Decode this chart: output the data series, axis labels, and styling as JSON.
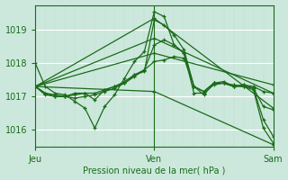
{
  "background_color": "#cce8dc",
  "plot_bg_color": "#cce8dc",
  "line_color": "#1a6b1a",
  "xlabel": "Pression niveau de la mer( hPa )",
  "yticks": [
    1016,
    1017,
    1018,
    1019
  ],
  "xtick_labels": [
    "Jeu",
    "Ven",
    "Sam"
  ],
  "ylim": [
    1015.5,
    1019.75
  ],
  "xlim": [
    0,
    48
  ],
  "xtick_positions": [
    0,
    24,
    48
  ],
  "vline_x": 24,
  "series": [
    {
      "x": [
        0,
        2,
        4,
        6,
        8,
        10,
        12,
        14,
        16,
        18,
        20,
        22,
        24,
        26,
        28,
        30,
        32,
        34,
        36,
        38,
        40,
        42,
        44,
        46,
        48
      ],
      "y": [
        1018.0,
        1017.3,
        1017.1,
        1017.05,
        1016.85,
        1016.65,
        1016.05,
        1016.7,
        1017.05,
        1017.55,
        1018.05,
        1018.35,
        1019.55,
        1019.4,
        1018.55,
        1018.3,
        1017.1,
        1017.1,
        1017.35,
        1017.4,
        1017.35,
        1017.3,
        1017.2,
        1016.05,
        1015.6
      ]
    },
    {
      "x": [
        0,
        24,
        48
      ],
      "y": [
        1017.3,
        1018.3,
        1017.35
      ]
    },
    {
      "x": [
        0,
        24,
        48
      ],
      "y": [
        1017.3,
        1018.75,
        1017.1
      ]
    },
    {
      "x": [
        0,
        24,
        48
      ],
      "y": [
        1017.3,
        1019.35,
        1016.65
      ]
    },
    {
      "x": [
        0,
        24,
        48
      ],
      "y": [
        1017.3,
        1017.15,
        1015.55
      ]
    },
    {
      "x": [
        0,
        2,
        4,
        6,
        8,
        10,
        12,
        14,
        16,
        18,
        20,
        22,
        24,
        26,
        28,
        30,
        32,
        34,
        36,
        38,
        40,
        42,
        44,
        46,
        48
      ],
      "y": [
        1017.3,
        1017.1,
        1017.0,
        1017.0,
        1017.1,
        1017.1,
        1016.9,
        1017.2,
        1017.3,
        1017.4,
        1017.6,
        1017.8,
        1018.05,
        1018.1,
        1018.2,
        1018.15,
        1017.3,
        1017.15,
        1017.4,
        1017.4,
        1017.3,
        1017.35,
        1017.3,
        1017.15,
        1017.1
      ]
    },
    {
      "x": [
        0,
        2,
        4,
        6,
        8,
        10,
        12,
        14,
        16,
        18,
        20,
        22,
        24,
        26,
        28,
        30,
        32,
        34,
        36,
        38,
        40,
        42,
        44,
        46,
        48
      ],
      "y": [
        1017.3,
        1017.05,
        1017.0,
        1017.0,
        1016.95,
        1017.0,
        1017.05,
        1017.15,
        1017.25,
        1017.4,
        1017.65,
        1017.75,
        1019.3,
        1019.15,
        1018.85,
        1018.4,
        1017.3,
        1017.05,
        1017.4,
        1017.45,
        1017.3,
        1017.3,
        1017.25,
        1016.7,
        1016.6
      ]
    },
    {
      "x": [
        0,
        2,
        4,
        6,
        8,
        10,
        12,
        14,
        16,
        18,
        20,
        22,
        24,
        26,
        28,
        30,
        32,
        34,
        36,
        38,
        40,
        42,
        44,
        46,
        48
      ],
      "y": [
        1017.3,
        1017.1,
        1017.05,
        1017.0,
        1017.05,
        1017.1,
        1017.1,
        1017.2,
        1017.3,
        1017.45,
        1017.65,
        1017.8,
        1018.55,
        1018.7,
        1018.55,
        1018.3,
        1017.3,
        1017.15,
        1017.4,
        1017.4,
        1017.3,
        1017.35,
        1017.25,
        1016.3,
        1015.8
      ]
    }
  ]
}
